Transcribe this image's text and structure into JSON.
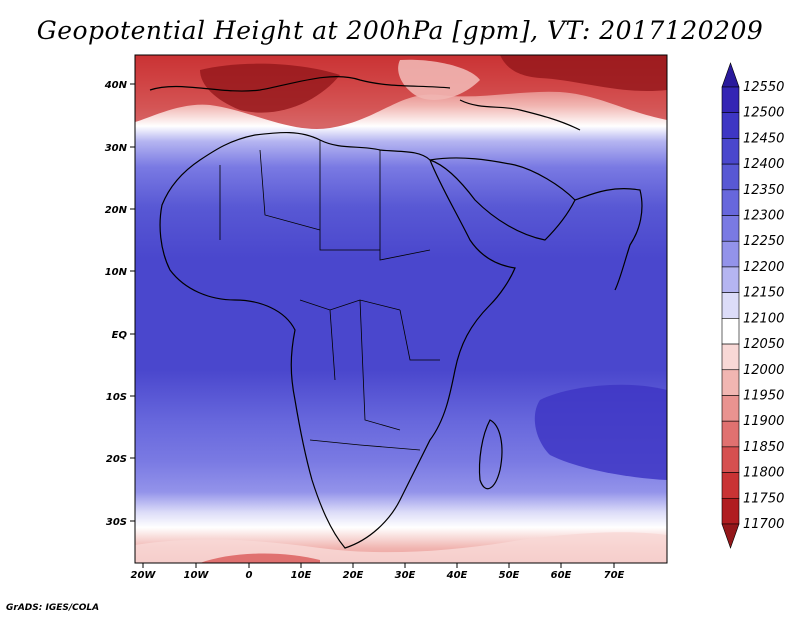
{
  "title": "Geopotential Height at 200hPa [gpm], VT: 2017120209",
  "footer": "GrADS: IGES/COLA",
  "map": {
    "lon_range": [
      -22,
      80
    ],
    "lat_range": [
      -37,
      45
    ],
    "x_ticks": [
      "20W",
      "10W",
      "0",
      "10E",
      "20E",
      "30E",
      "40E",
      "50E",
      "60E",
      "70E"
    ],
    "y_ticks": [
      "40N",
      "30N",
      "20N",
      "10N",
      "EQ",
      "10S",
      "20S",
      "30S"
    ]
  },
  "colorbar": {
    "levels": [
      "12550",
      "12500",
      "12450",
      "12400",
      "12350",
      "12300",
      "12250",
      "12200",
      "12150",
      "12100",
      "12050",
      "12000",
      "11950",
      "11900",
      "11850",
      "11800",
      "11750",
      "11700"
    ],
    "colors": [
      "#2a1a9c",
      "#3425b4",
      "#3e36c4",
      "#4a47cd",
      "#5858d4",
      "#6767dc",
      "#7a7ae3",
      "#9393ea",
      "#b5b5f1",
      "#dcdcf8",
      "#ffffff",
      "#f8d8d6",
      "#f1b6b2",
      "#e99390",
      "#e07170",
      "#d65050",
      "#c93334",
      "#b01d20",
      "#93171a"
    ]
  }
}
